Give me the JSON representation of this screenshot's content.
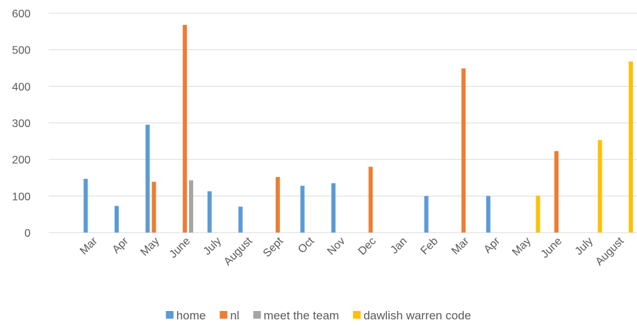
{
  "chart_data": {
    "type": "bar",
    "title": "",
    "xlabel": "",
    "ylabel": "",
    "ylim": [
      0,
      600
    ],
    "yticks": [
      0,
      100,
      200,
      300,
      400,
      500,
      600
    ],
    "grid": true,
    "legend_position": "bottom",
    "categories": [
      "",
      "Mar",
      "Apr",
      "May",
      "June",
      "July",
      "August",
      "Sept",
      "Oct",
      "Nov",
      "Dec",
      "Jan",
      "Feb",
      "Mar",
      "Apr",
      "May",
      "June",
      "July",
      "August"
    ],
    "series": [
      {
        "name": "home",
        "color": "#5b9bd5",
        "values": [
          null,
          147,
          73,
          295,
          null,
          113,
          71,
          null,
          128,
          135,
          null,
          null,
          100,
          null,
          100,
          null,
          null,
          null,
          null
        ]
      },
      {
        "name": "nl",
        "color": "#ed7d31",
        "values": [
          null,
          null,
          null,
          139,
          568,
          null,
          null,
          152,
          null,
          null,
          180,
          null,
          null,
          449,
          null,
          null,
          223,
          null,
          null
        ]
      },
      {
        "name": "meet the team",
        "color": "#a5a5a5",
        "values": [
          null,
          null,
          null,
          null,
          143,
          null,
          null,
          null,
          null,
          null,
          null,
          null,
          null,
          null,
          null,
          null,
          null,
          null,
          null
        ]
      },
      {
        "name": "dawlish warren code",
        "color": "#ffc000",
        "values": [
          null,
          null,
          null,
          null,
          null,
          null,
          null,
          null,
          null,
          null,
          null,
          null,
          null,
          null,
          null,
          101,
          null,
          253,
          468
        ]
      }
    ]
  }
}
